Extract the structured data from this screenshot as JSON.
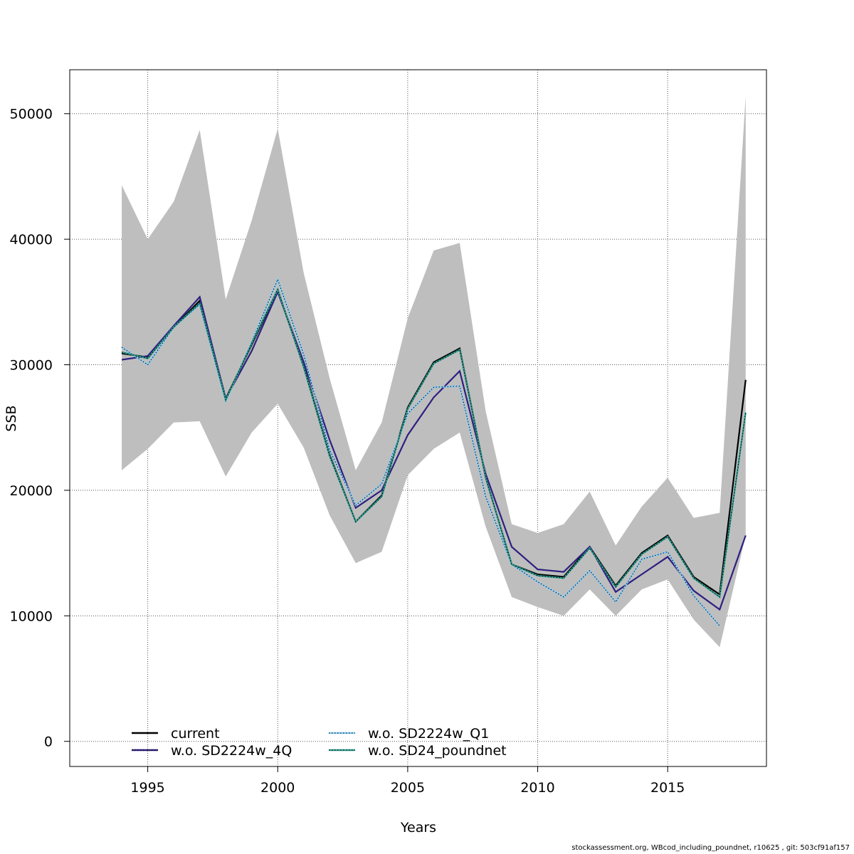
{
  "chart_data": {
    "type": "line",
    "title": "",
    "xlabel": "Years",
    "ylabel": "SSB",
    "x": [
      1994,
      1995,
      1996,
      1997,
      1998,
      1999,
      2000,
      2001,
      2002,
      2003,
      2004,
      2005,
      2006,
      2007,
      2008,
      2009,
      2010,
      2011,
      2012,
      2013,
      2014,
      2015,
      2016,
      2017,
      2018
    ],
    "xlim": [
      1992,
      2018.8
    ],
    "ylim": [
      -2000,
      53500
    ],
    "x_ticks": [
      1995,
      2000,
      2005,
      2010,
      2015
    ],
    "x_tick_labels": [
      "1995",
      "2000",
      "2005",
      "2010",
      "2015"
    ],
    "y_ticks": [
      0,
      10000,
      20000,
      30000,
      40000,
      50000
    ],
    "y_tick_labels": [
      "0",
      "10000",
      "20000",
      "30000",
      "40000",
      "50000"
    ],
    "grid": true,
    "legend_position": "bottom-left",
    "confidence_band": {
      "color": "#bebebe",
      "upper": [
        44300,
        40000,
        43000,
        48700,
        35200,
        41500,
        48800,
        37300,
        28900,
        21600,
        25400,
        33700,
        39100,
        39700,
        26300,
        17300,
        16600,
        17300,
        19900,
        15600,
        18700,
        21000,
        17800,
        18200,
        51400
      ],
      "lower": [
        21600,
        23300,
        25400,
        25500,
        21100,
        24600,
        26900,
        23400,
        18000,
        14200,
        15100,
        21200,
        23300,
        24600,
        17100,
        11500,
        10700,
        10000,
        12100,
        10000,
        12100,
        12900,
        9700,
        7500,
        16400
      ]
    },
    "series": [
      {
        "name": "current",
        "color": "#000000",
        "dash": "solid",
        "values": [
          30900,
          30600,
          33000,
          35100,
          27300,
          31600,
          35900,
          29900,
          22800,
          17500,
          19600,
          26600,
          30200,
          31300,
          21000,
          14100,
          13300,
          13100,
          15500,
          12400,
          15000,
          16400,
          13100,
          11700,
          28800
        ]
      },
      {
        "name": "w.o. SD2224w_4Q",
        "color": "#2e1f80",
        "dash": "solid",
        "values": [
          30400,
          30700,
          33100,
          35400,
          27300,
          31100,
          35800,
          30200,
          24000,
          18600,
          20000,
          24400,
          27400,
          29500,
          21300,
          15500,
          13700,
          13500,
          15500,
          11900,
          13300,
          14700,
          12000,
          10500,
          16400
        ]
      },
      {
        "name": "w.o. SD2224w_Q1",
        "color": "#87cefa",
        "dash": "dotted",
        "values": [
          31400,
          30000,
          33000,
          34800,
          27100,
          31800,
          36800,
          30800,
          23200,
          18800,
          20500,
          26100,
          28200,
          28300,
          19500,
          14100,
          12700,
          11500,
          13600,
          11100,
          14500,
          15100,
          11600,
          9200,
          null
        ]
      },
      {
        "name": "w.o. SD24_poundnet",
        "color": "#2a9d8f",
        "dash": "dotted",
        "values": [
          31000,
          30500,
          33000,
          34900,
          27200,
          31700,
          36000,
          29800,
          22700,
          17500,
          19500,
          26500,
          30100,
          31200,
          21000,
          14100,
          13200,
          13000,
          15400,
          12300,
          14900,
          16300,
          13000,
          11500,
          26200
        ]
      }
    ]
  },
  "legend": {
    "items": [
      {
        "label": "current",
        "color": "#000000"
      },
      {
        "label": "w.o. SD2224w_4Q",
        "color": "#2e1f80"
      },
      {
        "label": "w.o. SD2224w_Q1",
        "color": "#87cefa"
      },
      {
        "label": "w.o. SD24_poundnet",
        "color": "#2a9d8f"
      }
    ]
  },
  "footer": {
    "note": "stockassessment.org, WBcod_including_poundnet, r10625 , git: 503cf91af157"
  }
}
